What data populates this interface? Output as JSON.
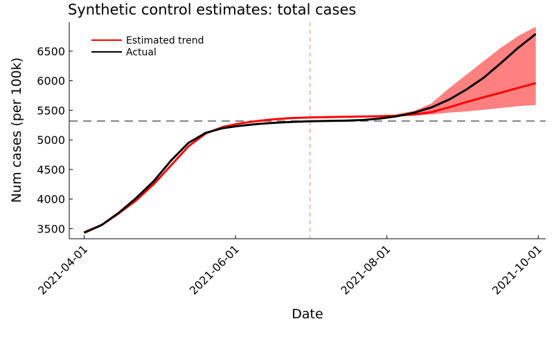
{
  "chart_data": {
    "type": "line",
    "title": "Synthetic control estimates: total cases",
    "xlabel": "Date",
    "ylabel": "Num cases (per 100k)",
    "x_ticks": [
      "2021-04-01",
      "2021-06-01",
      "2021-08-01",
      "2021-10-01"
    ],
    "y_ticks": [
      3500,
      4000,
      4500,
      5000,
      5500,
      6000,
      6500
    ],
    "xlim": [
      "2021-03-26",
      "2021-10-04"
    ],
    "ylim": [
      3330,
      6990
    ],
    "intervention_date": "2021-07-01",
    "reference_level": 5320,
    "legend_position": "top-left",
    "grid": false,
    "colors": {
      "estimated": "#ff0000",
      "band": "#ff8080",
      "actual": "#000000",
      "vline": "#f4a0a0",
      "hline": "#808080"
    },
    "series": [
      {
        "name": "Estimated trend",
        "x": [
          "2021-04-01",
          "2021-04-08",
          "2021-04-15",
          "2021-04-22",
          "2021-04-29",
          "2021-05-06",
          "2021-05-13",
          "2021-05-20",
          "2021-05-27",
          "2021-06-03",
          "2021-06-10",
          "2021-06-17",
          "2021-06-24",
          "2021-07-01",
          "2021-07-08",
          "2021-07-15",
          "2021-07-22",
          "2021-07-29",
          "2021-08-05",
          "2021-08-12",
          "2021-08-19",
          "2021-08-26",
          "2021-09-02",
          "2021-09-09",
          "2021-09-16",
          "2021-09-23",
          "2021-09-30"
        ],
        "values": [
          3440,
          3560,
          3760,
          3980,
          4250,
          4570,
          4890,
          5110,
          5220,
          5280,
          5320,
          5350,
          5370,
          5380,
          5385,
          5390,
          5395,
          5400,
          5410,
          5430,
          5470,
          5550,
          5640,
          5720,
          5800,
          5880,
          5960
        ]
      },
      {
        "name": "Band upper",
        "x": [
          "2021-08-05",
          "2021-08-12",
          "2021-08-19",
          "2021-08-26",
          "2021-09-02",
          "2021-09-09",
          "2021-09-16",
          "2021-09-23",
          "2021-09-30"
        ],
        "values": [
          5440,
          5490,
          5620,
          5870,
          6100,
          6330,
          6560,
          6760,
          6910
        ]
      },
      {
        "name": "Band lower",
        "x": [
          "2021-08-05",
          "2021-08-12",
          "2021-08-19",
          "2021-08-26",
          "2021-09-02",
          "2021-09-09",
          "2021-09-16",
          "2021-09-23",
          "2021-09-30"
        ],
        "values": [
          5400,
          5410,
          5430,
          5460,
          5480,
          5510,
          5540,
          5570,
          5590
        ]
      },
      {
        "name": "Actual",
        "x": [
          "2021-04-01",
          "2021-04-08",
          "2021-04-15",
          "2021-04-22",
          "2021-04-29",
          "2021-05-06",
          "2021-05-13",
          "2021-05-20",
          "2021-05-27",
          "2021-06-03",
          "2021-06-10",
          "2021-06-17",
          "2021-06-24",
          "2021-07-01",
          "2021-07-08",
          "2021-07-15",
          "2021-07-22",
          "2021-07-29",
          "2021-08-05",
          "2021-08-12",
          "2021-08-19",
          "2021-08-26",
          "2021-09-02",
          "2021-09-09",
          "2021-09-16",
          "2021-09-23",
          "2021-09-30"
        ],
        "values": [
          3430,
          3560,
          3770,
          4020,
          4300,
          4650,
          4950,
          5120,
          5200,
          5240,
          5270,
          5290,
          5305,
          5315,
          5320,
          5325,
          5335,
          5360,
          5400,
          5460,
          5550,
          5680,
          5850,
          6050,
          6300,
          6560,
          6790
        ]
      }
    ]
  }
}
